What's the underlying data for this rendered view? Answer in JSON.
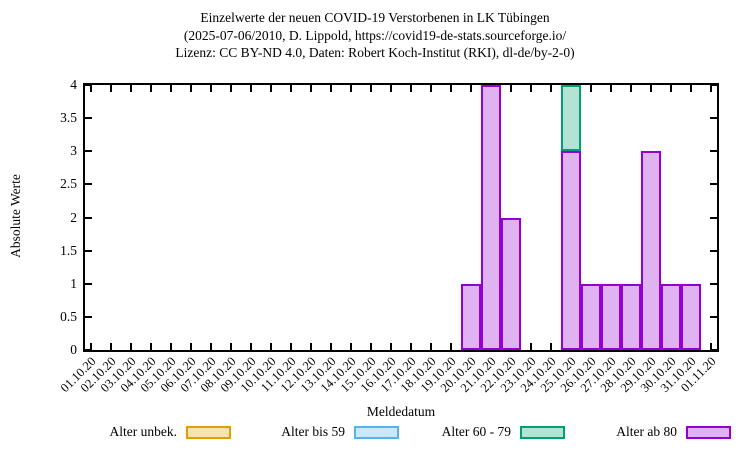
{
  "title": {
    "line1": "Einzelwerte der neuen COVID-19 Verstorbenen in LK Tübingen",
    "line2": "(2025-07-06/2010, D. Lippold, https://covid19-de-stats.sourceforge.io/",
    "line3": "Lizenz: CC BY-ND 4.0, Daten: Robert Koch-Institut (RKI), dl-de/by-2-0)"
  },
  "chart_data": {
    "type": "bar",
    "stacked": true,
    "grid": false,
    "legend_position": "bottom",
    "xlabel": "Meldedatum",
    "ylabel": "Absolute Werte",
    "ylim": [
      0,
      4
    ],
    "ytick_labels": [
      "0",
      "0.5",
      "1",
      "1.5",
      "2",
      "2.5",
      "3",
      "3.5",
      "4"
    ],
    "categories": [
      "01.10.20",
      "02.10.20",
      "03.10.20",
      "04.10.20",
      "05.10.20",
      "06.10.20",
      "07.10.20",
      "08.10.20",
      "09.10.20",
      "10.10.20",
      "11.10.20",
      "12.10.20",
      "13.10.20",
      "14.10.20",
      "15.10.20",
      "16.10.20",
      "17.10.20",
      "18.10.20",
      "19.10.20",
      "20.10.20",
      "21.10.20",
      "22.10.20",
      "23.10.20",
      "24.10.20",
      "25.10.20",
      "26.10.20",
      "27.10.20",
      "28.10.20",
      "29.10.20",
      "30.10.20",
      "31.10.20",
      "01.11.20"
    ],
    "series": [
      {
        "name": "Alter unbek.",
        "border_color": "#e0a000",
        "fill_color": "#f7e2b3",
        "values": [
          0,
          0,
          0,
          0,
          0,
          0,
          0,
          0,
          0,
          0,
          0,
          0,
          0,
          0,
          0,
          0,
          0,
          0,
          0,
          0,
          0,
          0,
          0,
          0,
          0,
          0,
          0,
          0,
          0,
          0,
          0,
          0
        ]
      },
      {
        "name": "Alter bis 59",
        "border_color": "#56b4e9",
        "fill_color": "#cce8f8",
        "values": [
          0,
          0,
          0,
          0,
          0,
          0,
          0,
          0,
          0,
          0,
          0,
          0,
          0,
          0,
          0,
          0,
          0,
          0,
          0,
          0,
          0,
          0,
          0,
          0,
          0,
          0,
          0,
          0,
          0,
          0,
          0,
          0
        ]
      },
      {
        "name": "Alter 60 - 79",
        "border_color": "#009e73",
        "fill_color": "#b3e3d3",
        "values": [
          0,
          0,
          0,
          0,
          0,
          0,
          0,
          0,
          0,
          0,
          0,
          0,
          0,
          0,
          0,
          0,
          0,
          0,
          0,
          0,
          0,
          0,
          0,
          0,
          1,
          0,
          0,
          0,
          0,
          0,
          0,
          0
        ]
      },
      {
        "name": "Alter ab 80",
        "border_color": "#9400d3",
        "fill_color": "#dfb3f2",
        "values": [
          0,
          0,
          0,
          0,
          0,
          0,
          0,
          0,
          0,
          0,
          0,
          0,
          0,
          0,
          0,
          0,
          0,
          0,
          0,
          1,
          4,
          2,
          0,
          0,
          3,
          1,
          1,
          1,
          3,
          1,
          1,
          0
        ]
      }
    ]
  },
  "colors": {
    "axis": "#000000",
    "background": "#ffffff"
  }
}
